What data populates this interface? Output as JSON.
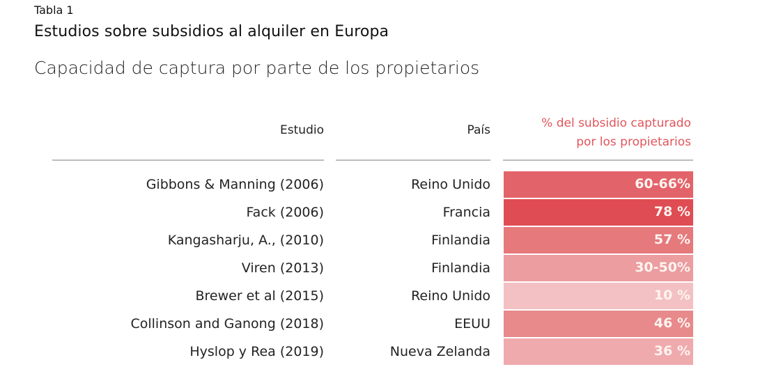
{
  "header": {
    "label": "Tabla 1",
    "title": "Estudios sobre subsidios al alquiler en Europa",
    "subtitle": "Capacidad de captura por parte de los propietarios"
  },
  "table": {
    "columns": [
      "Estudio",
      "País",
      "% del subsidio capturado por los propietarios"
    ],
    "pct_header_line1": "% del subsidio capturado",
    "pct_header_line2": "por los propietarios",
    "rows": [
      {
        "study": "Gibbons & Manning (2006)",
        "country": "Reino Unido",
        "pct": "60-66%",
        "color": "#e2646a"
      },
      {
        "study": "Fack (2006)",
        "country": "Francia",
        "pct": "78 %",
        "color": "#df4c53"
      },
      {
        "study": "Kangasharju, A., (2010)",
        "country": "Finlandia",
        "pct": "57 %",
        "color": "#e5797c"
      },
      {
        "study": "Viren (2013)",
        "country": "Finlandia",
        "pct": "30-50%",
        "color": "#eb9da0"
      },
      {
        "study": "Brewer et al (2015)",
        "country": "Reino Unido",
        "pct": "10 %",
        "color": "#f3c1c3"
      },
      {
        "study": "Collinson and Ganong (2018)",
        "country": "EEUU",
        "pct": "46 %",
        "color": "#e8898c"
      },
      {
        "study": "Hyslop y Rea (2019)",
        "country": "Nueva Zelanda",
        "pct": "36 %",
        "color": "#efaaad"
      }
    ]
  },
  "colors": {
    "accent": "#e0555c",
    "rule": "#bdbdbd"
  }
}
